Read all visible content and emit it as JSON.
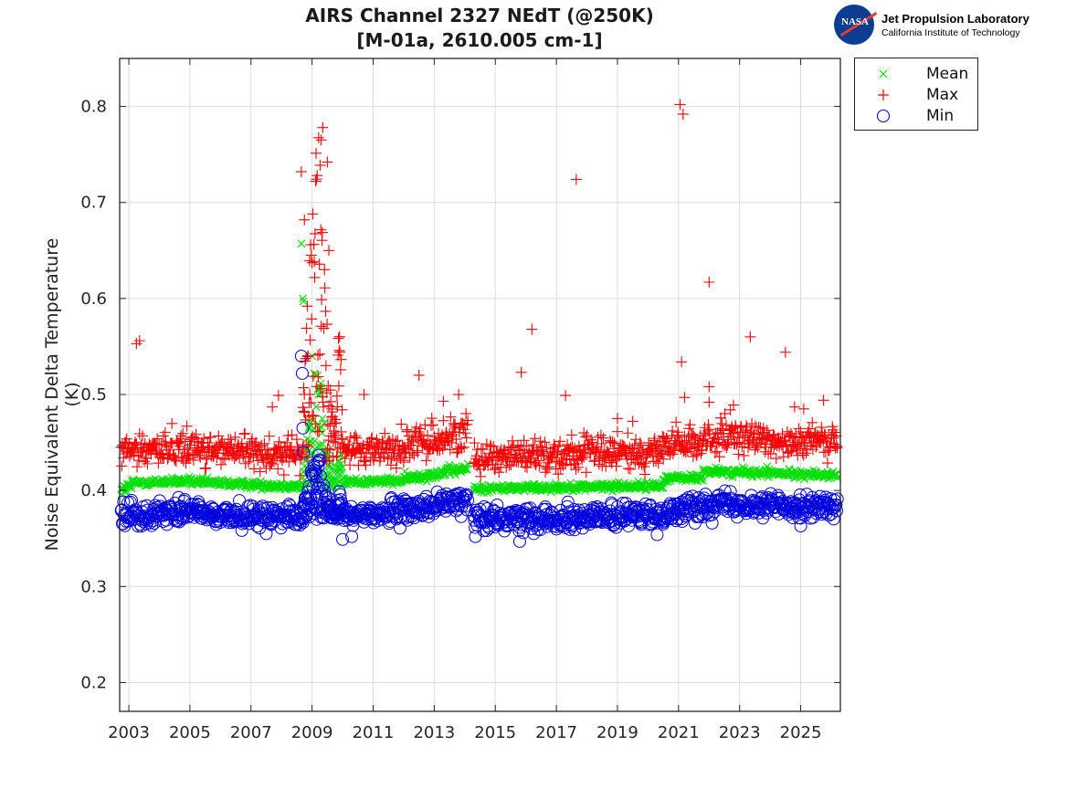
{
  "header": {
    "title_line1": "AIRS Channel 2327 NEdT (@250K)",
    "title_line2": "[M-01a, 2610.005 cm-1]"
  },
  "logo": {
    "badge_text": "NASA",
    "line1": "Jet Propulsion Laboratory",
    "line2": "California Institute of Technology",
    "badge_color": "#0b3d91",
    "swoosh_color": "#e03c31"
  },
  "chart_data": {
    "type": "scatter",
    "title": "AIRS Channel 2327 NEdT (@250K) [M-01a, 2610.005 cm-1]",
    "xlabel": "",
    "ylabel": "Noise Equivalent Delta Temperature (K)",
    "xlim": [
      2002.7,
      2026.3
    ],
    "ylim": [
      0.17,
      0.85
    ],
    "x_ticks": [
      2003,
      2005,
      2007,
      2009,
      2011,
      2013,
      2015,
      2017,
      2019,
      2021,
      2023,
      2025
    ],
    "x_tick_labels": [
      "2003",
      "2005",
      "2007",
      "2009",
      "2011",
      "2013",
      "2015",
      "2017",
      "2019",
      "2021",
      "2023",
      "2025"
    ],
    "y_ticks": [
      0.2,
      0.3,
      0.4,
      0.5,
      0.6,
      0.7,
      0.8
    ],
    "y_tick_labels": [
      "0.2",
      "0.3",
      "0.4",
      "0.5",
      "0.6",
      "0.7",
      "0.8"
    ],
    "grid": true,
    "legend_position": "outside-top-right",
    "series": [
      {
        "name": "Mean",
        "marker": "x",
        "color": "#00e000",
        "segments": [
          {
            "x0": 2002.75,
            "x1": 2003.1,
            "y0": 0.4,
            "y1": 0.405,
            "spread": 0.006
          },
          {
            "x0": 2003.1,
            "x1": 2005.0,
            "y0": 0.408,
            "y1": 0.41,
            "spread": 0.004
          },
          {
            "x0": 2005.0,
            "x1": 2008.7,
            "y0": 0.409,
            "y1": 0.404,
            "spread": 0.004
          },
          {
            "x0": 2010.0,
            "x1": 2012.0,
            "y0": 0.409,
            "y1": 0.41,
            "spread": 0.004
          },
          {
            "x0": 2012.0,
            "x1": 2014.1,
            "y0": 0.412,
            "y1": 0.423,
            "spread": 0.005
          },
          {
            "x0": 2014.3,
            "x1": 2020.5,
            "y0": 0.402,
            "y1": 0.405,
            "spread": 0.004
          },
          {
            "x0": 2020.5,
            "x1": 2021.8,
            "y0": 0.413,
            "y1": 0.413,
            "spread": 0.004
          },
          {
            "x0": 2021.8,
            "x1": 2026.2,
            "y0": 0.42,
            "y1": 0.416,
            "spread": 0.004
          }
        ],
        "anomaly": {
          "x0": 2008.7,
          "x1": 2010.0,
          "y_low": 0.4,
          "y_high": 0.53
        },
        "outliers": [
          [
            2008.65,
            0.657
          ],
          [
            2008.7,
            0.6
          ],
          [
            2008.72,
            0.597
          ],
          [
            2009.0,
            0.54
          ],
          [
            2023.9,
            0.425
          ]
        ]
      },
      {
        "name": "Max",
        "marker": "+",
        "color": "#ff0000",
        "segments": [
          {
            "x0": 2002.75,
            "x1": 2005.0,
            "y0": 0.44,
            "y1": 0.446,
            "spread": 0.018
          },
          {
            "x0": 2005.0,
            "x1": 2008.7,
            "y0": 0.444,
            "y1": 0.437,
            "spread": 0.017
          },
          {
            "x0": 2010.0,
            "x1": 2012.0,
            "y0": 0.442,
            "y1": 0.444,
            "spread": 0.017
          },
          {
            "x0": 2012.0,
            "x1": 2014.1,
            "y0": 0.446,
            "y1": 0.46,
            "spread": 0.018
          },
          {
            "x0": 2014.3,
            "x1": 2020.5,
            "y0": 0.436,
            "y1": 0.44,
            "spread": 0.017
          },
          {
            "x0": 2020.5,
            "x1": 2021.8,
            "y0": 0.447,
            "y1": 0.449,
            "spread": 0.017
          },
          {
            "x0": 2021.8,
            "x1": 2026.2,
            "y0": 0.455,
            "y1": 0.45,
            "spread": 0.017
          }
        ],
        "anomaly": {
          "x0": 2008.7,
          "x1": 2010.0,
          "y_low": 0.43,
          "y_high": 0.78
        },
        "outliers": [
          [
            2003.25,
            0.553
          ],
          [
            2003.35,
            0.556
          ],
          [
            2004.9,
            0.467
          ],
          [
            2007.7,
            0.487
          ],
          [
            2007.9,
            0.499
          ],
          [
            2008.65,
            0.732
          ],
          [
            2008.75,
            0.682
          ],
          [
            2009.3,
            0.765
          ],
          [
            2009.35,
            0.778
          ],
          [
            2009.5,
            0.742
          ],
          [
            2009.55,
            0.65
          ],
          [
            2010.7,
            0.5
          ],
          [
            2012.5,
            0.52
          ],
          [
            2013.3,
            0.493
          ],
          [
            2013.8,
            0.5
          ],
          [
            2015.85,
            0.523
          ],
          [
            2016.2,
            0.568
          ],
          [
            2017.3,
            0.499
          ],
          [
            2017.65,
            0.724
          ],
          [
            2017.9,
            0.46
          ],
          [
            2019.0,
            0.475
          ],
          [
            2019.5,
            0.472
          ],
          [
            2021.05,
            0.802
          ],
          [
            2021.15,
            0.792
          ],
          [
            2021.1,
            0.534
          ],
          [
            2021.2,
            0.497
          ],
          [
            2022.0,
            0.617
          ],
          [
            2022.0,
            0.508
          ],
          [
            2022.0,
            0.492
          ],
          [
            2022.7,
            0.484
          ],
          [
            2022.8,
            0.489
          ],
          [
            2023.35,
            0.56
          ],
          [
            2024.5,
            0.544
          ],
          [
            2024.8,
            0.487
          ],
          [
            2025.1,
            0.485
          ],
          [
            2025.75,
            0.494
          ]
        ]
      },
      {
        "name": "Min",
        "marker": "o",
        "color": "#0000e0",
        "segments": [
          {
            "x0": 2002.75,
            "x1": 2005.0,
            "y0": 0.375,
            "y1": 0.378,
            "spread": 0.013
          },
          {
            "x0": 2005.0,
            "x1": 2008.7,
            "y0": 0.377,
            "y1": 0.37,
            "spread": 0.012
          },
          {
            "x0": 2010.0,
            "x1": 2012.0,
            "y0": 0.375,
            "y1": 0.377,
            "spread": 0.012
          },
          {
            "x0": 2012.0,
            "x1": 2014.1,
            "y0": 0.379,
            "y1": 0.39,
            "spread": 0.012
          },
          {
            "x0": 2014.3,
            "x1": 2020.5,
            "y0": 0.37,
            "y1": 0.374,
            "spread": 0.012
          },
          {
            "x0": 2020.5,
            "x1": 2021.8,
            "y0": 0.378,
            "y1": 0.383,
            "spread": 0.012
          },
          {
            "x0": 2021.8,
            "x1": 2026.2,
            "y0": 0.388,
            "y1": 0.382,
            "spread": 0.012
          }
        ],
        "anomaly": {
          "x0": 2008.7,
          "x1": 2010.0,
          "y_low": 0.37,
          "y_high": 0.44
        },
        "outliers": [
          [
            2008.65,
            0.54
          ],
          [
            2008.68,
            0.522
          ],
          [
            2008.7,
            0.465
          ],
          [
            2008.72,
            0.44
          ],
          [
            2009.15,
            0.37
          ],
          [
            2010.0,
            0.349
          ],
          [
            2010.3,
            0.352
          ],
          [
            2014.35,
            0.352
          ],
          [
            2015.8,
            0.347
          ],
          [
            2020.3,
            0.354
          ],
          [
            2022.1,
            0.366
          ],
          [
            2025.0,
            0.363
          ]
        ]
      }
    ]
  }
}
